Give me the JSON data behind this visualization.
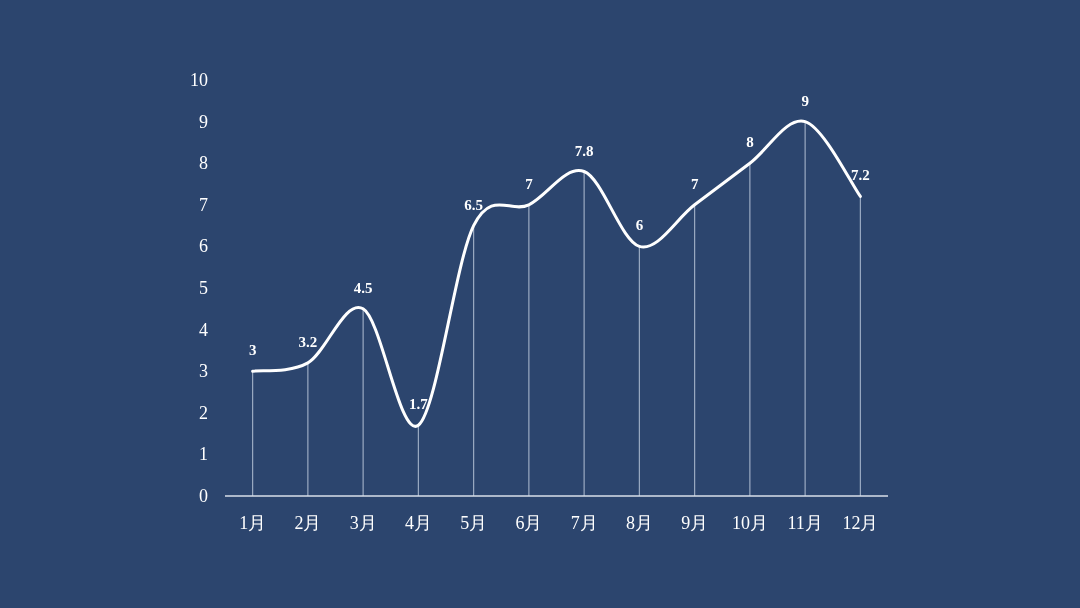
{
  "chart_data": {
    "type": "line",
    "categories": [
      "1月",
      "2月",
      "3月",
      "4月",
      "5月",
      "6月",
      "7月",
      "8月",
      "9月",
      "10月",
      "11月",
      "12月"
    ],
    "series": [
      {
        "color": "#ffffff",
        "values": [
          3,
          3.2,
          4.5,
          1.7,
          6.5,
          7,
          7.8,
          6,
          7,
          8,
          9,
          7.2
        ]
      }
    ],
    "ylim": [
      0,
      10
    ],
    "yticks": [
      0,
      1,
      2,
      3,
      4,
      5,
      6,
      7,
      8,
      9,
      10
    ],
    "data_labels": true,
    "grid": "x",
    "marker": "none",
    "line_style": "solid"
  }
}
